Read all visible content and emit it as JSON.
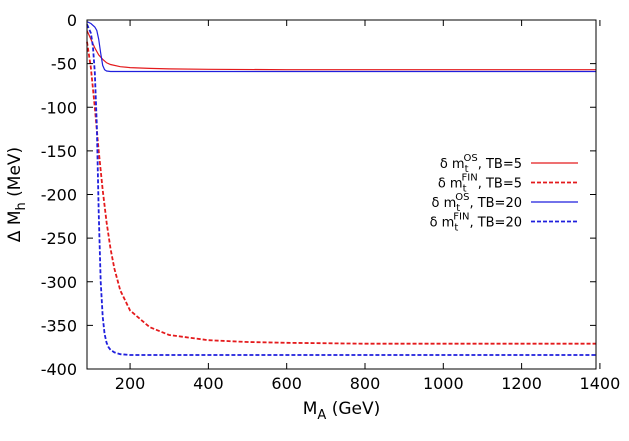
{
  "chart_data": {
    "type": "line",
    "xlabel": {
      "main": "M",
      "sub": "A",
      "rest": " (GeV)"
    },
    "ylabel": {
      "main": "Δ M",
      "sub": "h",
      "rest": " (MeV)"
    },
    "xlim": [
      90,
      1390
    ],
    "ylim": [
      -400,
      0
    ],
    "xticks": [
      200,
      400,
      600,
      800,
      1000,
      1200,
      1400
    ],
    "yticks": [
      0,
      -50,
      -100,
      -150,
      -200,
      -250,
      -300,
      -350,
      -400
    ],
    "grid": false,
    "legend_position": "right",
    "series": [
      {
        "name": "δ m_t^OS, TB=5",
        "legend": {
          "prefix": "δ m",
          "sub": "t",
          "sup": "OS",
          "suffix": ", TB=5"
        },
        "color": "#e41a1c",
        "dashed": false,
        "x": [
          90,
          100,
          110,
          120,
          130,
          140,
          150,
          175,
          200,
          250,
          300,
          400,
          600,
          800,
          1000,
          1200,
          1390
        ],
        "y": [
          -12,
          -22,
          -32,
          -40,
          -45,
          -49,
          -51,
          -53.5,
          -54.5,
          -55.5,
          -56,
          -56.5,
          -57,
          -57,
          -57,
          -57,
          -57
        ]
      },
      {
        "name": "δ m_t^FIN, TB=5",
        "legend": {
          "prefix": "δ m",
          "sub": "t",
          "sup": "FIN",
          "suffix": ", TB=5"
        },
        "color": "#e41a1c",
        "dashed": true,
        "x": [
          90,
          100,
          110,
          120,
          130,
          140,
          150,
          160,
          175,
          200,
          250,
          300,
          400,
          500,
          600,
          800,
          1000,
          1200,
          1390
        ],
        "y": [
          -25,
          -55,
          -100,
          -150,
          -195,
          -232,
          -262,
          -285,
          -310,
          -333,
          -352,
          -361,
          -367,
          -369,
          -370,
          -371,
          -371,
          -371,
          -371
        ]
      },
      {
        "name": "δ m_t^OS, TB=20",
        "legend": {
          "prefix": "δ m",
          "sub": "t",
          "sup": "OS",
          "suffix": ", TB=20"
        },
        "color": "#1f1fdd",
        "dashed": false,
        "x": [
          90,
          100,
          110,
          115,
          120,
          125,
          130,
          135,
          140,
          150,
          200,
          400,
          800,
          1390
        ],
        "y": [
          -2,
          -4,
          -8,
          -12,
          -22,
          -38,
          -52,
          -57,
          -58.5,
          -59,
          -59,
          -59,
          -59,
          -59
        ]
      },
      {
        "name": "δ m_t^FIN, TB=20",
        "legend": {
          "prefix": "δ m",
          "sub": "t",
          "sup": "FIN",
          "suffix": ", TB=20"
        },
        "color": "#1f1fdd",
        "dashed": true,
        "x": [
          90,
          100,
          105,
          110,
          115,
          120,
          125,
          130,
          135,
          140,
          145,
          150,
          160,
          175,
          200,
          300,
          600,
          1390
        ],
        "y": [
          -5,
          -15,
          -30,
          -60,
          -120,
          -220,
          -300,
          -340,
          -360,
          -370,
          -375,
          -378,
          -381,
          -383,
          -384,
          -384,
          -384,
          -384
        ]
      }
    ]
  }
}
